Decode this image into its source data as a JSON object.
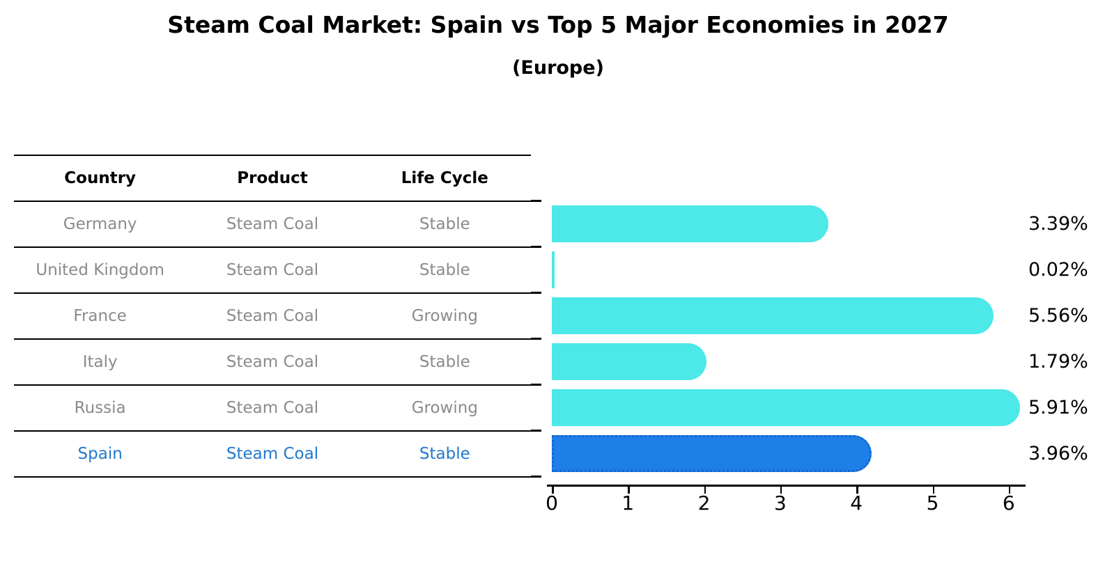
{
  "title": "Steam Coal Market: Spain vs Top 5 Major Economies in 2027",
  "subtitle": "(Europe)",
  "table": {
    "headers": [
      "Country",
      "Product",
      "Life Cycle"
    ],
    "rows": [
      {
        "country": "Germany",
        "product": "Steam Coal",
        "life_cycle": "Stable",
        "highlight": false
      },
      {
        "country": "United Kingdom",
        "product": "Steam Coal",
        "life_cycle": "Stable",
        "highlight": false
      },
      {
        "country": "France",
        "product": "Steam Coal",
        "life_cycle": "Growing",
        "highlight": false
      },
      {
        "country": "Italy",
        "product": "Steam Coal",
        "life_cycle": "Stable",
        "highlight": false
      },
      {
        "country": "Russia",
        "product": "Steam Coal",
        "life_cycle": "Growing",
        "highlight": false
      },
      {
        "country": "Spain",
        "product": "Steam Coal",
        "life_cycle": "Stable",
        "highlight": true
      }
    ]
  },
  "chart_data": {
    "type": "bar",
    "orientation": "horizontal",
    "title": "Steam Coal Market: Spain vs Top 5 Major Economies in 2027",
    "subtitle": "(Europe)",
    "categories": [
      "Germany",
      "United Kingdom",
      "France",
      "Italy",
      "Russia",
      "Spain"
    ],
    "values": [
      3.39,
      0.02,
      5.56,
      1.79,
      5.91,
      3.96
    ],
    "value_labels": [
      "3.39%",
      "0.02%",
      "5.56%",
      "1.79%",
      "5.91%",
      "3.96%"
    ],
    "x_ticks": [
      0,
      1,
      2,
      3,
      4,
      5,
      6
    ],
    "xlim": [
      0,
      6.2
    ],
    "grid": false,
    "legend": false,
    "highlight_index": 5
  },
  "colors": {
    "bar": "#4de8e8",
    "highlight_bar": "#1e7fe8",
    "highlight_border": "#1565cc",
    "highlight_text": "#2279ce",
    "row_text": "#8b8b8b",
    "axis": "#000000"
  }
}
